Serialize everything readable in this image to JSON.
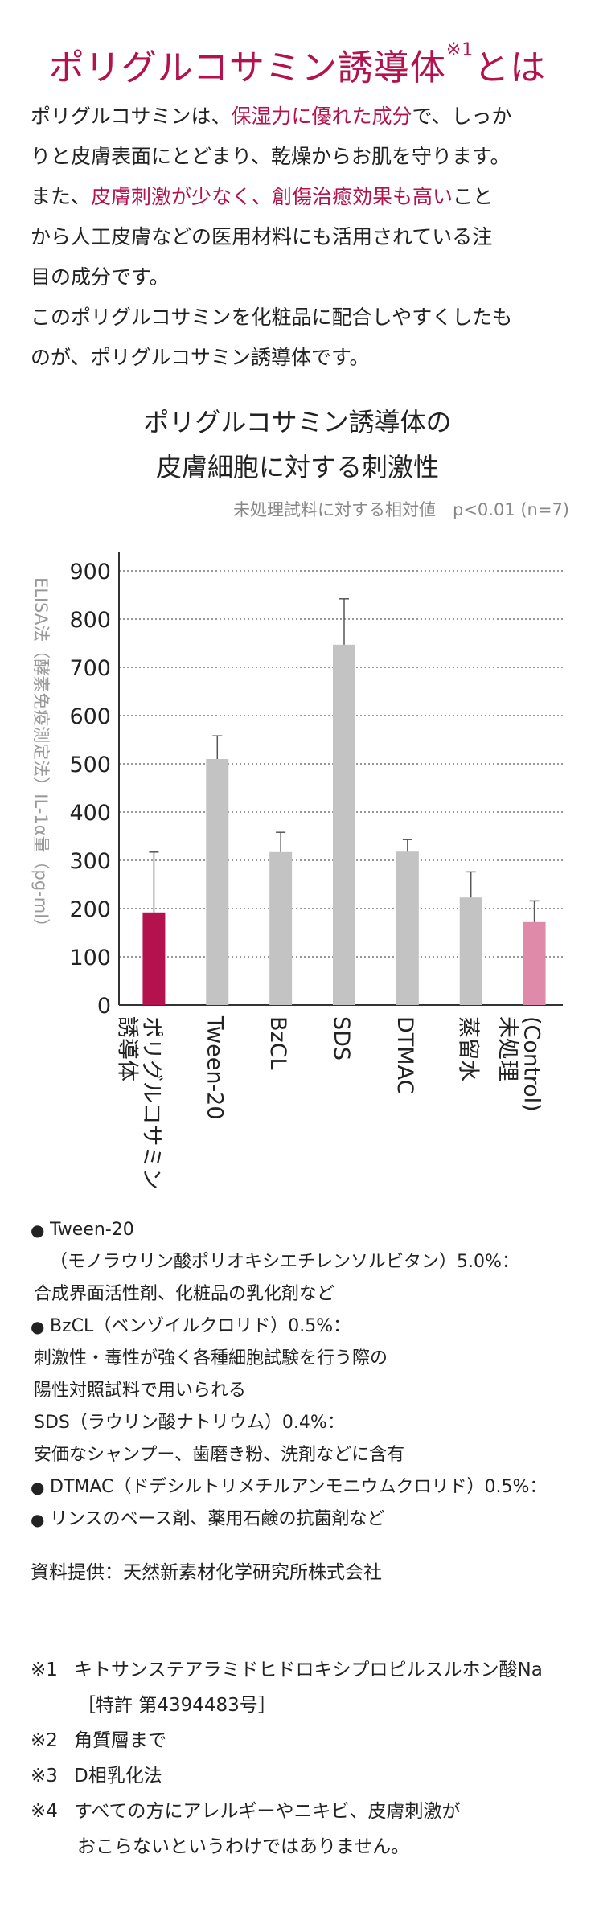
{
  "heading": {
    "main": "ポリグルコサミン誘導体",
    "sup": "※1",
    "tail": "とは"
  },
  "intro": {
    "p1": [
      {
        "t": "ポリグルコサミンは、"
      },
      {
        "t": "保湿力に優れた成分",
        "hl": true
      },
      {
        "t": "で、しっか"
      }
    ],
    "p2": "りと皮膚表面にとどまり、乾燥からお肌を守ります。",
    "p3": [
      {
        "t": "また、"
      },
      {
        "t": "皮膚刺激が少なく、創傷治癒効果も高い",
        "hl": true
      },
      {
        "t": "こと"
      }
    ],
    "p4": "から人工皮膚などの医用材料にも活用されている注",
    "p5": "目の成分です。",
    "p6": "このポリグルコサミンを化粧品に配合しやすくしたも",
    "p7": "のが、ポリグルコサミン誘導体です。"
  },
  "chart_title": {
    "line1": "ポリグルコサミン誘導体の",
    "line2": "皮膚細胞に対する刺激性"
  },
  "chart_note": "未処理試料に対する相対値　p<0.01 (n=7)",
  "chart_data": {
    "type": "bar",
    "ylabel": "ELISA法（酵素免疫測定法）IL-1α量（pg-ml）",
    "ylim": [
      0,
      900
    ],
    "yticks": [
      0,
      100,
      200,
      300,
      400,
      500,
      600,
      700,
      800,
      900
    ],
    "grid": true,
    "categories": [
      {
        "lines": [
          "ポリグルコサミン",
          "誘導体"
        ]
      },
      {
        "lines": [
          "Tween-20"
        ]
      },
      {
        "lines": [
          "BzCL"
        ]
      },
      {
        "lines": [
          "SDS"
        ]
      },
      {
        "lines": [
          "DTMAC"
        ]
      },
      {
        "lines": [
          "蒸留水"
        ]
      },
      {
        "lines": [
          "(Control)",
          "未処理"
        ]
      }
    ],
    "values": [
      192,
      510,
      317,
      747,
      318,
      223,
      172
    ],
    "error_upper": [
      317,
      558,
      358,
      842,
      343,
      276,
      216
    ],
    "error_lower": [
      192,
      510,
      317,
      747,
      318,
      223,
      172
    ],
    "colors": [
      "#b3124e",
      "#c3c3c3",
      "#c3c3c3",
      "#c3c3c3",
      "#c3c3c3",
      "#c3c3c3",
      "#e08aaa"
    ]
  },
  "footnotes": [
    {
      "bullet": true,
      "indent": 0,
      "text": "Tween-20"
    },
    {
      "bullet": false,
      "indent": 1,
      "text": "（モノラウリン酸ポリオキシエチレンソルビタン）5.0%："
    },
    {
      "bullet": false,
      "indent": 0,
      "text": "合成界面活性剤、化粧品の乳化剤など"
    },
    {
      "bullet": true,
      "indent": 0,
      "text": "BzCL（ベンゾイルクロリド）0.5%："
    },
    {
      "bullet": false,
      "indent": 0,
      "text": "刺激性・毒性が強く各種細胞試験を行う際の"
    },
    {
      "bullet": false,
      "indent": 0,
      "text": "陽性対照試料で用いられる"
    },
    {
      "bullet": false,
      "indent": 0,
      "text": "SDS（ラウリン酸ナトリウム）0.4%："
    },
    {
      "bullet": false,
      "indent": 0,
      "text": "安価なシャンプー、歯磨き粉、洗剤などに含有"
    },
    {
      "bullet": true,
      "indent": 0,
      "text": "DTMAC（ドデシルトリメチルアンモニウムクロリド）0.5%："
    },
    {
      "bullet": true,
      "indent": 0,
      "text": "リンスのベース剤、薬用石鹸の抗菌剤など"
    }
  ],
  "source": "資料提供：天然新素材化学研究所株式会社",
  "refs": [
    {
      "mark": "※1",
      "lines": [
        "キトサンステアラミドヒドロキシプロピルスルホン酸Na",
        "［特許 第4394483号］"
      ]
    },
    {
      "mark": "※2",
      "lines": [
        "角質層まで"
      ]
    },
    {
      "mark": "※3",
      "lines": [
        "D相乳化法"
      ]
    },
    {
      "mark": "※4",
      "lines": [
        "すべての方にアレルギーやニキビ、皮膚刺激が",
        "おこらないというわけではありません。"
      ]
    }
  ]
}
